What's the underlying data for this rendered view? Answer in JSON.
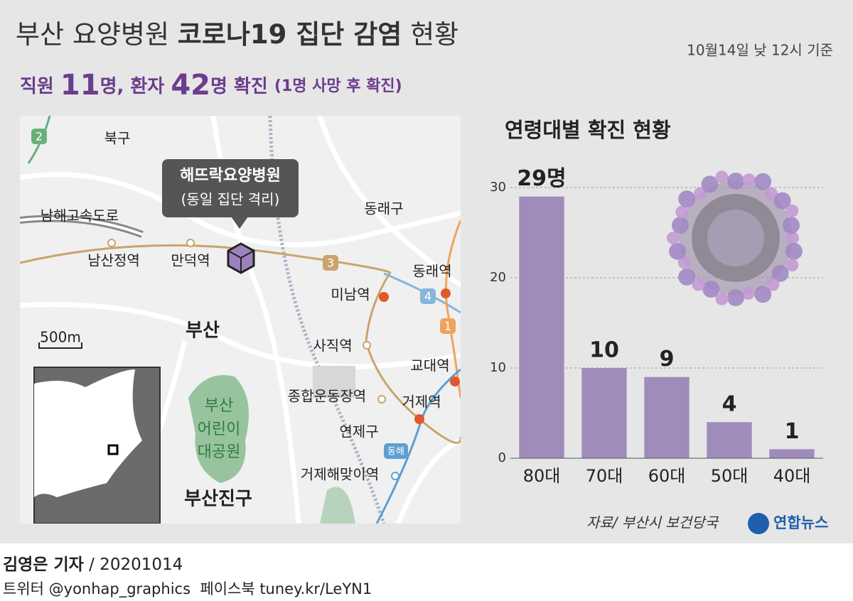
{
  "header": {
    "title": [
      "부산 요양병원",
      "코로나19 집단 감염",
      "현황"
    ],
    "date_note": "10월14일 낮 12시 기준",
    "subtitle": [
      "직원",
      "11",
      "명, 환자",
      "42",
      "명 확진",
      "(1명 사망 후 확진)"
    ]
  },
  "map": {
    "hospital": [
      "해뜨락요양병원",
      "(동일 집단 격리)"
    ],
    "labels": [
      "북구",
      "남해고속도로",
      "남산정역",
      "만덕역",
      "동래구",
      "동래역",
      "미남역",
      "사직역",
      "교대역",
      "종합운동장역",
      "거제역",
      "연제구",
      "거제해맞이역",
      "부산",
      "500m",
      "부산진구"
    ],
    "park": [
      "부산",
      "어린이",
      "대공원"
    ],
    "line_badges": [
      "2",
      "3",
      "4",
      "1",
      "동해"
    ]
  },
  "chart_data": {
    "type": "bar",
    "title": "연령대별 확진 현황",
    "categories": [
      "80대",
      "70대",
      "60대",
      "50대",
      "40대"
    ],
    "values": [
      29,
      10,
      9,
      4,
      1
    ],
    "value_labels": [
      "29명",
      "10",
      "9",
      "4",
      "1"
    ],
    "color": "#a08cbb",
    "ylim": [
      0,
      30
    ],
    "yticks": [
      0,
      10,
      20,
      30
    ],
    "grid": true
  },
  "source": "자료/ 부산시 보건당국",
  "logo": "연합뉴스",
  "footer": {
    "reporter": "김영은 기자",
    "date": "/ 20201014",
    "sns": "트위터 @yonhap_graphics  페이스북 tuney.kr/LeYN1"
  }
}
